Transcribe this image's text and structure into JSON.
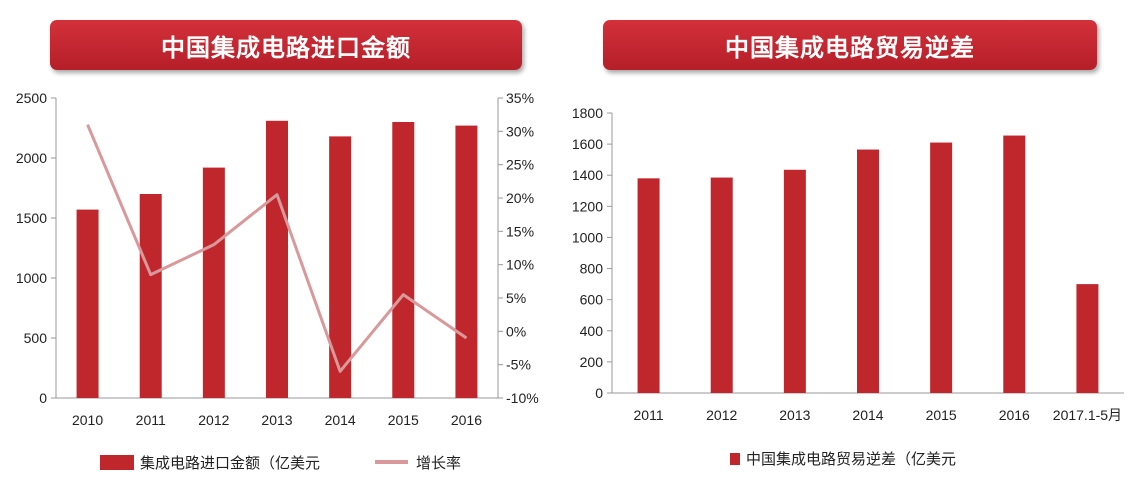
{
  "colors": {
    "bar": "#c0272d",
    "line": "#d9999b",
    "banner": "#c62a33",
    "axis": "#999999"
  },
  "chart_data": [
    {
      "type": "bar",
      "title": "中国集成电路进口金额",
      "categories": [
        "2010",
        "2011",
        "2012",
        "2013",
        "2014",
        "2015",
        "2016"
      ],
      "series": [
        {
          "name": "集成电路进口金额（亿美元",
          "type": "bar",
          "axis": "left",
          "values": [
            1570,
            1700,
            1920,
            2310,
            2180,
            2300,
            2270
          ]
        },
        {
          "name": "增长率",
          "type": "line",
          "axis": "right",
          "values": [
            31,
            8.5,
            13,
            20.5,
            -6,
            5.5,
            -1
          ]
        }
      ],
      "ylim": [
        0,
        2500
      ],
      "yticks": [
        "2500",
        "2000",
        "1500",
        "1000",
        "500",
        "0"
      ],
      "y2lim": [
        -10,
        35
      ],
      "y2ticks": [
        "35%",
        "30%",
        "25%",
        "20%",
        "15%",
        "10%",
        "5%",
        "0%",
        "-5%",
        "-10%"
      ],
      "legend": "bottom",
      "grid": false
    },
    {
      "type": "bar",
      "title": "中国集成电路贸易逆差",
      "categories": [
        "2011",
        "2012",
        "2013",
        "2014",
        "2015",
        "2016",
        "2017.1-5月"
      ],
      "series": [
        {
          "name": "中国集成电路贸易逆差（亿美元",
          "values": [
            1380,
            1385,
            1435,
            1565,
            1610,
            1655,
            700
          ]
        }
      ],
      "ylim": [
        0,
        1800
      ],
      "yticks": [
        "1800",
        "1600",
        "1400",
        "1200",
        "1000",
        "800",
        "600",
        "400",
        "200",
        "0"
      ],
      "legend": "bottom",
      "grid": false
    }
  ]
}
